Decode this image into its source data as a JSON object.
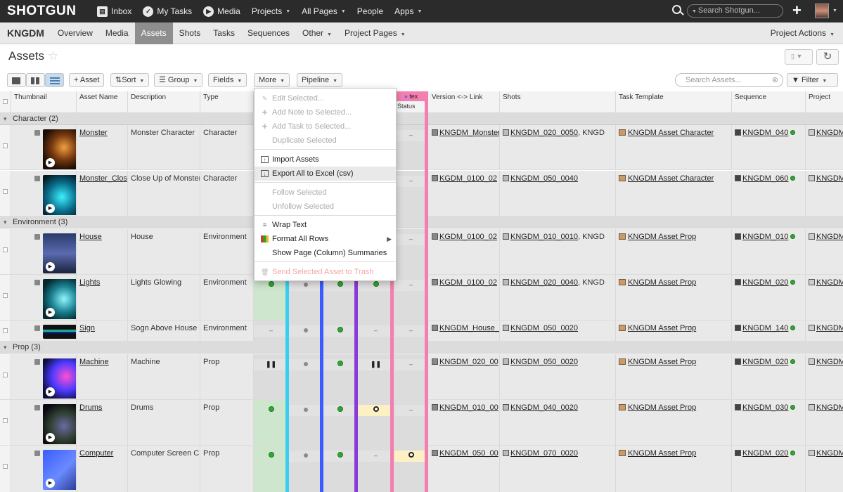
{
  "topbar": {
    "logo": "SHOTGUN",
    "nav": [
      "Inbox",
      "My Tasks",
      "Media",
      "Projects",
      "All Pages",
      "People",
      "Apps"
    ],
    "search_placeholder": "Search Shotgun..."
  },
  "project": {
    "name": "KNGDM",
    "tabs": [
      "Overview",
      "Media",
      "Assets",
      "Shots",
      "Tasks",
      "Sequences",
      "Other",
      "Project Pages"
    ],
    "active_tab": "Assets",
    "actions": "Project Actions"
  },
  "page": {
    "title": "Assets"
  },
  "toolbar": {
    "add": "+ Asset",
    "sort": "Sort",
    "group": "Group",
    "fields": "Fields",
    "more": "More",
    "pipeline": "Pipeline",
    "search_placeholder": "Search Assets...",
    "filter": "Filter"
  },
  "columns": {
    "thumbnail": "Thumbnail",
    "asset_name": "Asset Name",
    "description": "Description",
    "type": "Type",
    "tex_step": "tex",
    "tex_status": "Status",
    "version": "Version <-> Link",
    "shots": "Shots",
    "task_template": "Task Template",
    "sequence": "Sequence",
    "project": "Project"
  },
  "groups": [
    {
      "label": "Character (2)"
    },
    {
      "label": "Environment (3)"
    },
    {
      "label": "Prop (3)"
    }
  ],
  "rows": [
    {
      "name": "Monster",
      "desc": "Monster Character",
      "type": "Character",
      "version": "KNGDM_Monster",
      "shots": "KNGDM_020_0050",
      "shots_more": ", KNGD",
      "template": "KNGDM Asset Character",
      "sequence": "KNGDM_040",
      "project": "KNGDM"
    },
    {
      "name": "Monster_Clos",
      "desc": "Close Up of Monster",
      "type": "Character",
      "version": "KGDM_0100_02",
      "shots": "KNGDM_050_0040",
      "shots_more": "",
      "template": "KNGDM Asset Character",
      "sequence": "KNGDM_060",
      "project": "KNGDM"
    },
    {
      "name": "House",
      "desc": "House",
      "type": "Environment",
      "version": "KGDM_0100_02",
      "shots": "KNGDM_010_0010",
      "shots_more": ", KNGD",
      "template": "KNGDM Asset Prop",
      "sequence": "KNGDM_010",
      "project": "KNGDM"
    },
    {
      "name": "Lights",
      "desc": "Lights Glowing",
      "type": "Environment",
      "version": "KGDM_0100_02",
      "shots": "KNGDM_020_0040",
      "shots_more": ", KNGD",
      "template": "KNGDM Asset Prop",
      "sequence": "KNGDM_020",
      "project": "KNGDM"
    },
    {
      "name": "Sign",
      "desc": "Sogn Above House",
      "type": "Environment",
      "version": "KNGDM_House_\\",
      "shots": "KNGDM_050_0020",
      "shots_more": "",
      "template": "KNGDM Asset Prop",
      "sequence": "KNGDM_140",
      "project": "KNGDM"
    },
    {
      "name": "Machine",
      "desc": "Machine",
      "type": "Prop",
      "version": "KNGDM_020_00",
      "shots": "KNGDM_050_0020",
      "shots_more": "",
      "template": "KNGDM Asset Prop",
      "sequence": "KNGDM_020",
      "project": "KNGDM"
    },
    {
      "name": "Drums",
      "desc": "Drums",
      "type": "Prop",
      "version": "KNGDM_010_00",
      "shots": "KNGDM_040_0020",
      "shots_more": "",
      "template": "KNGDM Asset Prop",
      "sequence": "KNGDM_030",
      "project": "KNGDM"
    },
    {
      "name": "Computer",
      "desc": "Computer Screen Cl",
      "type": "Prop",
      "version": "KNGDM_050_00",
      "shots": "KNGDM_070_0020",
      "shots_more": "",
      "template": "KNGDM Asset Prop",
      "sequence": "KNGDM_020",
      "project": "KNGDM"
    }
  ],
  "menu": {
    "edit_selected": "Edit Selected...",
    "add_note": "Add Note to Selected...",
    "add_task": "Add Task to Selected...",
    "duplicate": "Duplicate Selected",
    "import": "Import Assets",
    "export": "Export All to Excel (csv)",
    "follow": "Follow Selected",
    "unfollow": "Unfollow Selected",
    "wrap": "Wrap Text",
    "format": "Format All Rows",
    "summaries": "Show Page (Column) Summaries",
    "trash": "Send Selected Asset to Trash"
  },
  "colors": {
    "cyan": "#35d0f0",
    "blue": "#3a5bff",
    "purple": "#8a3ad8",
    "pink": "#f27fb0",
    "status_green": "#2fa830",
    "cell_green": "#cde6cd"
  }
}
